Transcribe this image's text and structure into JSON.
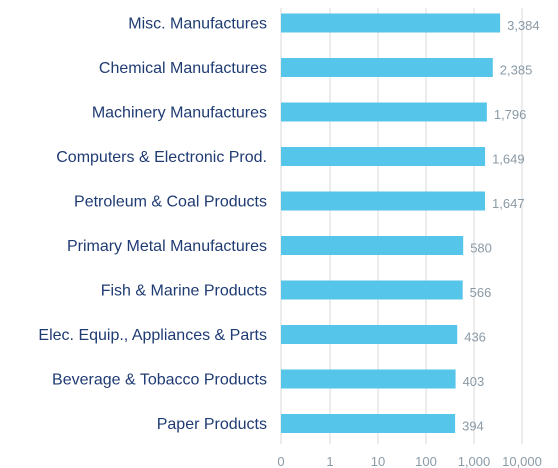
{
  "chart_data": {
    "type": "bar",
    "orientation": "horizontal",
    "x_scale": "log",
    "categories": [
      "Misc. Manufactures",
      "Chemical Manufactures",
      "Machinery Manufactures",
      "Computers & Electronic Prod.",
      "Petroleum & Coal Products",
      "Primary Metal Manufactures",
      "Fish & Marine Products",
      "Elec. Equip., Appliances & Parts",
      "Beverage & Tobacco Products",
      "Paper Products"
    ],
    "values": [
      3384,
      2385,
      1796,
      1649,
      1647,
      580,
      566,
      436,
      403,
      394
    ],
    "value_labels": [
      "3,384",
      "2,385",
      "1,796",
      "1,649",
      "1,647",
      "580",
      "566",
      "436",
      "403",
      "394"
    ],
    "x_ticks": [
      "0",
      "1",
      "10",
      "100",
      "1,000",
      "10,000"
    ],
    "title": "",
    "xlabel": "",
    "ylabel": "",
    "grid": true,
    "legend": "none",
    "colors": {
      "bar": "#56c5ea",
      "category_text": "#1f3b73",
      "value_text": "#8a9aa6",
      "grid": "#d9d9d9"
    }
  }
}
